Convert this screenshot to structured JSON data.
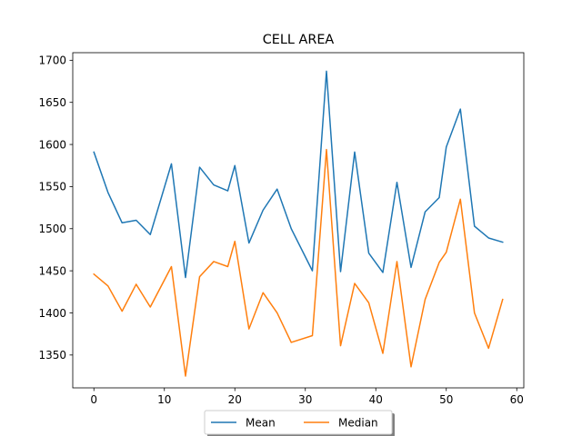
{
  "chart_data": {
    "type": "line",
    "title": "CELL AREA",
    "xlabel": "",
    "ylabel": "",
    "xlim": [
      -3,
      61
    ],
    "ylim": [
      1311,
      1709
    ],
    "xticks": [
      0,
      10,
      20,
      30,
      40,
      50,
      60
    ],
    "yticks": [
      1350,
      1400,
      1450,
      1500,
      1550,
      1600,
      1650,
      1700
    ],
    "grid": false,
    "legend_position": "bottom-center",
    "x": [
      0,
      2,
      4,
      6,
      8,
      11,
      13,
      15,
      17,
      19,
      20,
      22,
      24,
      26,
      28,
      31,
      33,
      35,
      37,
      39,
      41,
      43,
      45,
      47,
      49,
      50,
      52,
      54,
      56,
      58
    ],
    "series": [
      {
        "name": "Mean",
        "color": "#1f77b4",
        "values": [
          1591,
          1543,
          1507,
          1510,
          1493,
          1577,
          1442,
          1573,
          1552,
          1545,
          1575,
          1483,
          1522,
          1547,
          1500,
          1450,
          1687,
          1449,
          1591,
          1471,
          1448,
          1555,
          1454,
          1520,
          1537,
          1597,
          1642,
          1503,
          1489,
          1484
        ]
      },
      {
        "name": "Median",
        "color": "#ff7f0e",
        "values": [
          1446,
          1432,
          1402,
          1434,
          1407,
          1455,
          1325,
          1443,
          1461,
          1455,
          1485,
          1381,
          1424,
          1400,
          1365,
          1373,
          1594,
          1361,
          1435,
          1412,
          1352,
          1461,
          1336,
          1416,
          1460,
          1472,
          1535,
          1400,
          1358,
          1416
        ]
      }
    ]
  }
}
